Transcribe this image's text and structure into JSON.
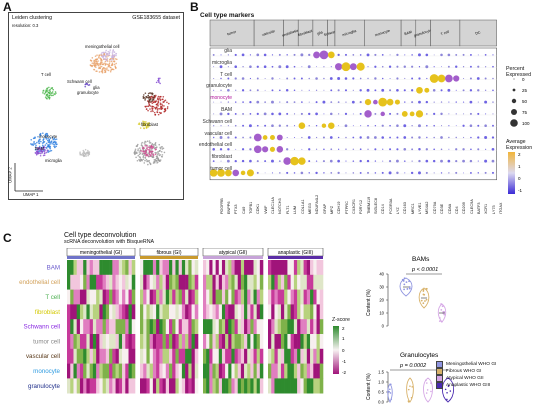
{
  "panels": {
    "a": "A",
    "b": "B",
    "c": "C"
  },
  "umap": {
    "dataset": "GSE183655 dataset",
    "method": "Leiden clustering",
    "resolution": "resolution: 0.3",
    "axis_x": "UMAP 1",
    "axis_y": "UMAP 2",
    "labels": [
      "meningothelial cell",
      "Schwann cell",
      "glia",
      "granulocyte",
      "T cell",
      "fibroblast",
      "monocyte",
      "BAM",
      "microglia"
    ]
  },
  "dotplot": {
    "title": "Cell type markers",
    "rows": [
      "glia",
      "microglia",
      "T cell",
      "granulocyte",
      "monocyte",
      "BAM",
      "Schwann cell",
      "vascular cell",
      "endothelial cell",
      "fibroblast",
      "tumor cell"
    ],
    "groups": [
      "tumor",
      "vascular",
      "endothelial",
      "fibroblast",
      "glia",
      "Schwann",
      "microglia",
      "monocyte",
      "BAM",
      "granulocyte",
      "T cell",
      "DC"
    ],
    "genes": [
      "PDGFRB",
      "ENPP6",
      "PTX3",
      "CA9",
      "TGFB1",
      "CDK1",
      "VWF",
      "CLEC14A",
      "NOTCH3",
      "FLT1",
      "LUM",
      "COL1A1",
      "MEG3",
      "NDUFA4L2",
      "GFAP",
      "MPZ",
      "CDH19",
      "PTPRC",
      "CX3CR1",
      "P2RY12",
      "TMEM119",
      "SIGLEC8",
      "CD14",
      "FCGR3A",
      "LYZ",
      "CD163",
      "MRC1",
      "LYVE1",
      "MS4A2",
      "CD79A",
      "CD3E",
      "CD8A",
      "CD4",
      "CD209",
      "CLEC9A",
      "BATF3",
      "XCR1",
      "LY75",
      "ITGAX"
    ],
    "legend_pct_title": "Percent Expressed",
    "legend_pct_values": [
      "0",
      "25",
      "50",
      "75",
      "100"
    ],
    "legend_expr_title": "Average Expression",
    "legend_expr_values": [
      "2",
      "1",
      "0",
      "-1"
    ]
  },
  "deconv": {
    "title": "Cell type deconvolution",
    "subtitle": "scRNA deconvolution with BisqueRNA",
    "groups": [
      {
        "label": "meningothelial (GI)",
        "color": "#6f73c9"
      },
      {
        "label": "fibrous (GI)",
        "color": "#c99a2e"
      },
      {
        "label": "atypical (GII)",
        "color": "#c6a3d8"
      },
      {
        "label": "anaplastic (GIII)",
        "color": "#5b2da6"
      }
    ],
    "rows": [
      {
        "label": "BAM",
        "color": "#6a5acd"
      },
      {
        "label": "endothelial cell",
        "color": "#d2a15a"
      },
      {
        "label": "T cell",
        "color": "#4caf50"
      },
      {
        "label": "fibroblast",
        "color": "#d4c900"
      },
      {
        "label": "Schwann cell",
        "color": "#8a2be2"
      },
      {
        "label": "tumor cell",
        "color": "#888888"
      },
      {
        "label": "vascular cell",
        "color": "#5a3a1a"
      },
      {
        "label": "monocyte",
        "color": "#2f9be0"
      },
      {
        "label": "granulocyte",
        "color": "#1f2f8a"
      }
    ],
    "zscore_title": "Z-score",
    "zscore_ticks": [
      "2",
      "1",
      "0",
      "-1",
      "-2"
    ]
  },
  "violin_bam": {
    "title": "BAMs",
    "pvalue": "p < 0.0001",
    "ylabel": "Content (%)",
    "ylim": [
      0,
      40
    ],
    "yticks": [
      "0",
      "10",
      "20",
      "30",
      "40"
    ]
  },
  "violin_gran": {
    "title": "Granulocytes",
    "pvalue": "p = 0.0002",
    "ylabel": "Content (%)",
    "ylim": [
      0,
      1.5
    ],
    "yticks": [
      "0.0",
      "0.5",
      "1.0",
      "1.5"
    ]
  },
  "violin_legend": [
    {
      "label": "Meningothelial WHO GI",
      "color": "#8f95e0"
    },
    {
      "label": "Fibrous WHO GI",
      "color": "#d8b26a"
    },
    {
      "label": "Atypical WHO GII",
      "color": "#d6a8e6"
    },
    {
      "label": "Anaplastic WHO GIII",
      "color": "#4b2bb0"
    }
  ]
}
